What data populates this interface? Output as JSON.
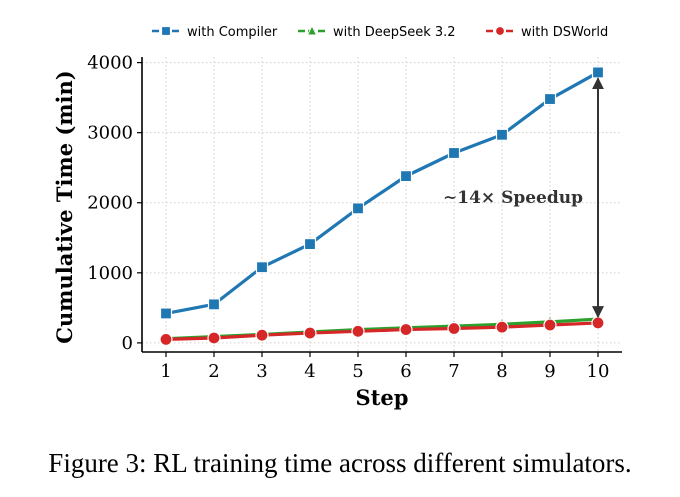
{
  "caption": "Figure 3: RL training time across different simulators.",
  "chart_data": {
    "type": "line",
    "xlabel": "Step",
    "ylabel": "Cumulative Time (min)",
    "x": [
      1,
      2,
      3,
      4,
      5,
      6,
      7,
      8,
      9,
      10
    ],
    "xticks": [
      "1",
      "2",
      "3",
      "4",
      "5",
      "6",
      "7",
      "8",
      "9",
      "10"
    ],
    "yticks": [
      "0",
      "1000",
      "2000",
      "3000",
      "4000"
    ],
    "ylim": [
      -130,
      4080
    ],
    "xlim": [
      0.5,
      10.5
    ],
    "grid": true,
    "legend_position": "top",
    "series": [
      {
        "name": "with Compiler",
        "color": "#1f77b4",
        "marker": "square",
        "values": [
          420,
          550,
          1080,
          1410,
          1920,
          2380,
          2710,
          2970,
          3480,
          3860
        ]
      },
      {
        "name": "with DeepSeek 3.2",
        "color": "#2ca02c",
        "marker": "triangle",
        "values": [
          60,
          90,
          120,
          155,
          190,
          215,
          240,
          265,
          300,
          340
        ]
      },
      {
        "name": "with DSWorld",
        "color": "#d62728",
        "marker": "circle",
        "values": [
          50,
          70,
          110,
          140,
          165,
          190,
          205,
          225,
          255,
          285
        ]
      }
    ],
    "annotation": {
      "text": "∼14× Speedup",
      "x": 10,
      "from": 3860,
      "to": 285
    }
  }
}
